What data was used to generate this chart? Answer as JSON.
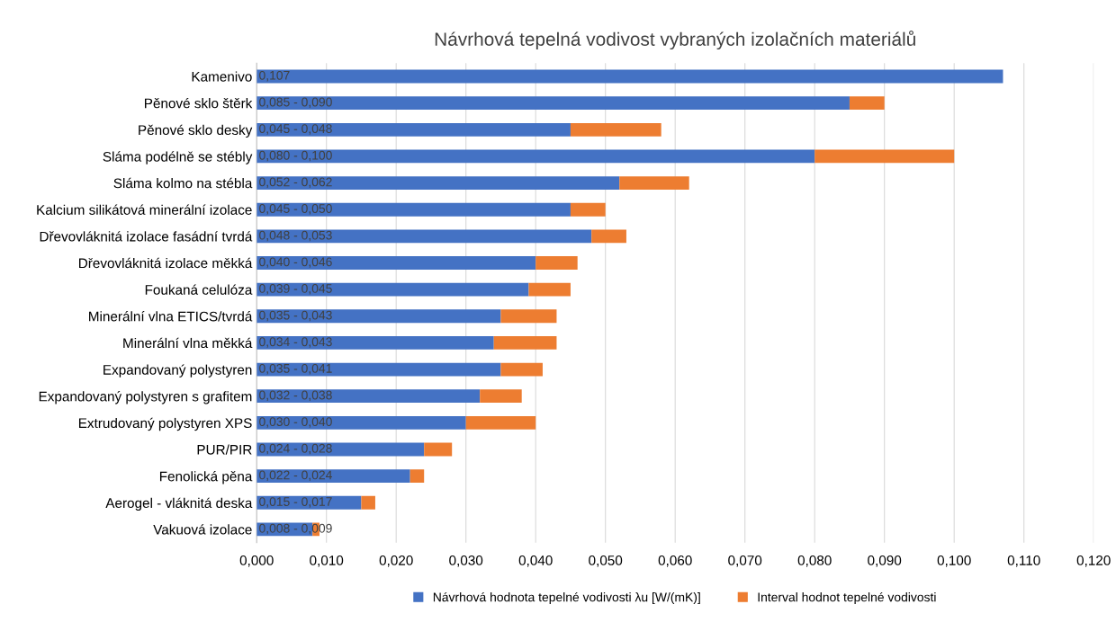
{
  "chart_data": {
    "type": "bar",
    "orientation": "horizontal",
    "stacked": true,
    "title": "Návrhová tepelná vodivost vybraných izolačních materiálů",
    "categories": [
      "Kamenivo",
      "Pěnové sklo štěrk",
      "Pěnové sklo desky",
      "Sláma podélně se stébly",
      "Sláma kolmo na stébla",
      "Kalcium silikátová minerální izolace",
      "Dřevovláknitá izolace fasádní tvrdá",
      "Dřevovláknitá izolace měkká",
      "Foukaná celulóza",
      "Minerální vlna ETICS/tvrdá",
      "Minerální vlna měkká",
      "Expandovaný polystyren",
      "Expandovaný polystyren s grafitem",
      "Extrudovaný polystyren XPS",
      "PUR/PIR",
      "Fenolická pěna",
      "Aerogel - vláknitá deska",
      "Vakuová izolace"
    ],
    "series": [
      {
        "name": "Návrhová hodnota tepelné vodivosti λu [W/(mK)]",
        "color": "#4472c4",
        "values": [
          0.107,
          0.085,
          0.045,
          0.08,
          0.052,
          0.045,
          0.048,
          0.04,
          0.039,
          0.035,
          0.034,
          0.035,
          0.032,
          0.03,
          0.024,
          0.022,
          0.015,
          0.008
        ],
        "value_labels": [
          "0,107",
          "0,085 - 0,090",
          "0,045 - 0,048",
          "0,080 - 0,100",
          "0,052 - 0,062",
          "0,045 - 0,050",
          "0,048 - 0,053",
          "0,040 - 0,046",
          "0,039 - 0,045",
          "0,035 - 0,043",
          "0,034 - 0,043",
          "0,035 - 0,041",
          "0,032 - 0,038",
          "0,030 - 0,040",
          "0,024 - 0,028",
          "0,022 - 0,024",
          "0,015 - 0,017",
          "0,008 - 0,009"
        ]
      },
      {
        "name": "Interval hodnot tepelné vodivosti",
        "color": "#ed7d31",
        "values": [
          0,
          0.005,
          0.013,
          0.02,
          0.01,
          0.005,
          0.005,
          0.006,
          0.006,
          0.008,
          0.009,
          0.006,
          0.006,
          0.01,
          0.004,
          0.002,
          0.002,
          0.001
        ]
      }
    ],
    "xlim": [
      0,
      0.12
    ],
    "xticks": [
      {
        "value": 0,
        "label": "0,000"
      },
      {
        "value": 0.01,
        "label": "0,010"
      },
      {
        "value": 0.02,
        "label": "0,020"
      },
      {
        "value": 0.03,
        "label": "0,030"
      },
      {
        "value": 0.04,
        "label": "0,040"
      },
      {
        "value": 0.05,
        "label": "0,050"
      },
      {
        "value": 0.06,
        "label": "0,060"
      },
      {
        "value": 0.07,
        "label": "0,070"
      },
      {
        "value": 0.08,
        "label": "0,080"
      },
      {
        "value": 0.09,
        "label": "0,090"
      },
      {
        "value": 0.1,
        "label": "0,100"
      },
      {
        "value": 0.11,
        "label": "0,110"
      },
      {
        "value": 0.12,
        "label": "0,120"
      }
    ],
    "grid": "x",
    "legend": "bottom"
  }
}
